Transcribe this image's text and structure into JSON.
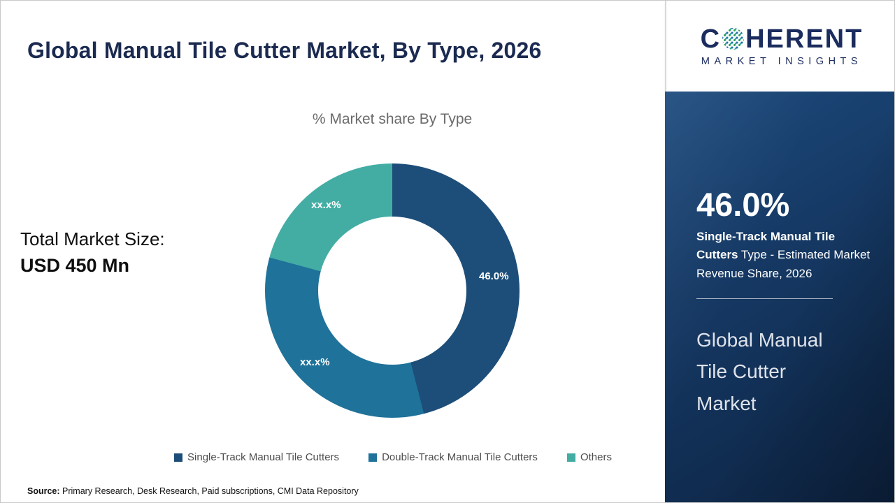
{
  "title": "Global Manual Tile Cutter Market, By Type, 2026",
  "chart_data": {
    "type": "pie",
    "donut": true,
    "title": "% Market share By Type",
    "categories": [
      "Single-Track Manual Tile Cutters",
      "Double-Track Manual Tile Cutters",
      "Others"
    ],
    "values": [
      46.0,
      33.2,
      20.8
    ],
    "labels_shown": [
      "46.0%",
      "xx.x%",
      "xx.x%"
    ],
    "colors": [
      "#1d4e79",
      "#1f7299",
      "#43ada4"
    ],
    "legend_position": "bottom",
    "note": "Only the 46.0% share is disclosed; other slice values are masked as xx.x%"
  },
  "total_market": {
    "label": "Total Market Size:",
    "value": "USD 450 Mn"
  },
  "legend": {
    "item1": "Single-Track Manual Tile Cutters",
    "item2": "Double-Track Manual Tile Cutters",
    "item3": "Others"
  },
  "logo": {
    "text_c": "C",
    "text_rest": "HERENT",
    "subtext": "MARKET INSIGHTS"
  },
  "side_panel": {
    "stat_value": "46.0%",
    "stat_desc_bold": "Single-Track Manual Tile Cutters",
    "stat_desc_rest": " Type - Estimated Market Revenue Share, 2026",
    "market_name": "Global Manual Tile Cutter Market"
  },
  "source": {
    "label": "Source:",
    "text": " Primary Research, Desk Research, Paid subscriptions, CMI Data Repository"
  }
}
